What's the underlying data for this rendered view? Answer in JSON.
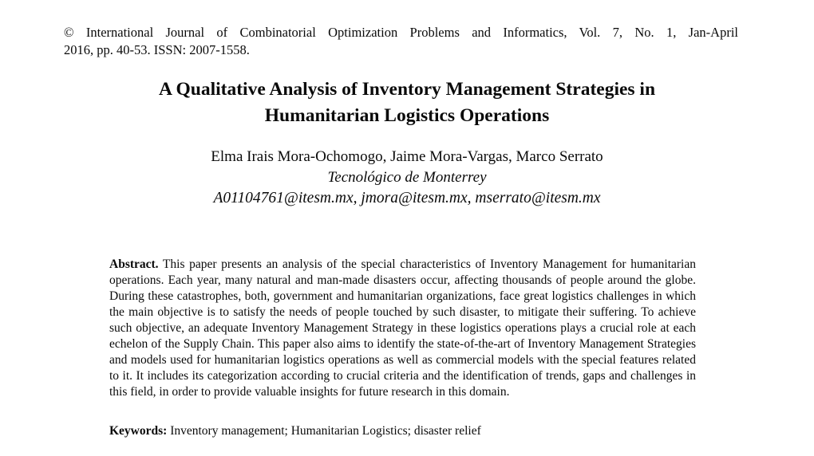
{
  "page": {
    "background_color": "#ffffff",
    "text_color": "#0a0a0a"
  },
  "journal_header": {
    "line1": "© International Journal of Combinatorial Optimization Problems and Informatics, Vol. 7, No. 1, Jan-April",
    "line2": "2016, pp. 40-53. ISSN: 2007-1558."
  },
  "title": {
    "line1": "A Qualitative Analysis of Inventory Management Strategies in",
    "line2": "Humanitarian Logistics Operations"
  },
  "authors": {
    "names": "Elma Irais Mora-Ochomogo, Jaime Mora-Vargas, Marco Serrato",
    "affiliation": "Tecnológico de Monterrey",
    "emails": "A01104761@itesm.mx, jmora@itesm.mx, mserrato@itesm.mx"
  },
  "abstract": {
    "label": "Abstract.",
    "text": "This paper presents an analysis of the special characteristics of Inventory Management for humanitarian operations. Each year, many natural and man-made disasters occur, affecting thousands of people around the globe. During these catastrophes, both, government and humanitarian organizations, face great logistics challenges in which the main objective is to satisfy the needs of people touched by such disaster, to mitigate their suffering. To achieve such objective, an adequate Inventory Management Strategy in these logistics operations plays a crucial role at each echelon of the Supply Chain. This paper also aims to identify the state-of-the-art of Inventory Management Strategies and models used for humanitarian logistics operations as well as commercial models with the special features related to it. It includes its categorization according to crucial criteria and the identification of trends, gaps and challenges in this field, in order to provide valuable insights for future research in this domain."
  },
  "keywords": {
    "label": "Keywords:",
    "text": "Inventory management; Humanitarian Logistics; disaster relief"
  }
}
